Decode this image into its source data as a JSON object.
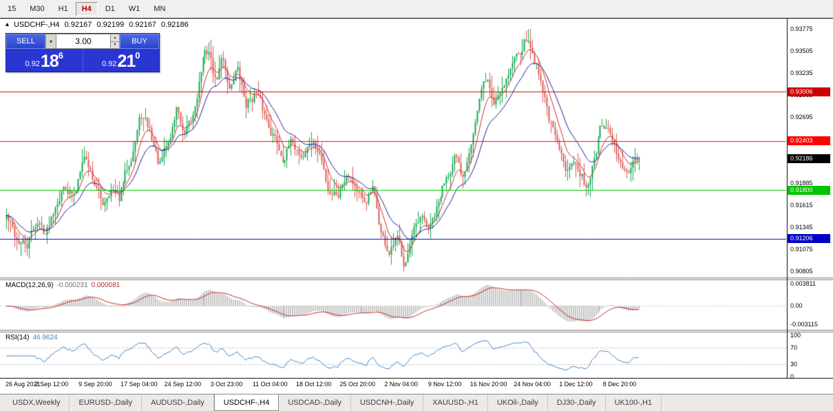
{
  "toolbar": {
    "timeframes": [
      "15",
      "M30",
      "H1",
      "H4",
      "D1",
      "W1",
      "MN"
    ],
    "active_timeframe": "H4"
  },
  "chart_header": {
    "collapse_icon": "▴",
    "symbol": "USDCHF-,H4",
    "open": "0.92167",
    "high": "0.92199",
    "low": "0.92167",
    "close": "0.92186"
  },
  "trade_panel": {
    "sell_label": "SELL",
    "buy_label": "BUY",
    "lot_size": "3.00",
    "sell_price": {
      "base": "0.92",
      "pips": "18",
      "pip_fraction": "6"
    },
    "buy_price": {
      "base": "0.92",
      "pips": "21",
      "pip_fraction": "0"
    }
  },
  "indicators": {
    "macd": {
      "name": "MACD(12,26,9)",
      "value_main": "-0.000231",
      "value_signal": "0.000081",
      "axis_labels": [
        {
          "text": "0.003811",
          "value": 0.003811
        },
        {
          "text": "0.00",
          "value": 0
        },
        {
          "text": "-0.003115",
          "value": -0.003115
        }
      ]
    },
    "rsi": {
      "name": "RSI(14)",
      "value": "46.9624",
      "axis_labels": [
        {
          "text": "100",
          "value": 100
        },
        {
          "text": "70",
          "value": 70
        },
        {
          "text": "30",
          "value": 30
        },
        {
          "text": "0",
          "value": 0
        }
      ]
    }
  },
  "time_axis": [
    "26 Aug 2021",
    "2 Sep 12:00",
    "9 Sep 20:00",
    "17 Sep 04:00",
    "24 Sep 12:00",
    "3 Oct 23:00",
    "11 Oct 04:00",
    "18 Oct 12:00",
    "25 Oct 20:00",
    "2 Nov 04:00",
    "9 Nov 12:00",
    "16 Nov 20:00",
    "24 Nov 04:00",
    "1 Dec 12:00",
    "8 Dec 20:00"
  ],
  "tabs": {
    "items": [
      "USDX,Weekly",
      "EURUSD-,Daily",
      "AUDUSD-,Daily",
      "USDCHF-,H4",
      "USDCAD-,Daily",
      "USDCNH-,Daily",
      "XAUUSD-,H1",
      "UKOil-,Daily",
      "DJ30-,Daily",
      "UK100-,H1"
    ],
    "active": "USDCHF-,H4"
  },
  "chart_data": {
    "type": "candlestick",
    "symbol": "USDCHF",
    "timeframe": "H4",
    "bars": 310,
    "seed": 42,
    "last_price": 0.92186,
    "price_top": 0.9387,
    "price_bottom": 0.9073,
    "price_axis_ticks": [
      "0.93775",
      "0.93505",
      "0.93235",
      "0.92965",
      "0.92695",
      "0.92425",
      "0.92155",
      "0.91885",
      "0.91615",
      "0.91345",
      "0.91075",
      "0.90805"
    ],
    "levels": [
      {
        "price": 0.93006,
        "label": "0.93006",
        "color": "#cc0000"
      },
      {
        "price": 0.92403,
        "label": "0.92403",
        "color": "#ff0000"
      },
      {
        "price": 0.918,
        "label": "0.91800",
        "color": "#00c400"
      },
      {
        "price": 0.91206,
        "label": "0.91206",
        "color": "#0000c8"
      }
    ],
    "current_price": {
      "price": 0.92186,
      "label": "0.92186",
      "color": "#000000"
    },
    "colors": {
      "up": "#0caa52",
      "down": "#db5a52",
      "ma_fast": "#d42a2a",
      "ma_slow": "#1a1a99",
      "macd_hist": "#c4c4c4",
      "macd_signal": "#cc2222",
      "rsi": "#3d85c8",
      "rsi_levels": "#b8b8b8"
    },
    "price_path": [
      [
        0.0,
        0.9148
      ],
      [
        0.015,
        0.912
      ],
      [
        0.032,
        0.911
      ],
      [
        0.047,
        0.9142
      ],
      [
        0.063,
        0.9128
      ],
      [
        0.08,
        0.9172
      ],
      [
        0.094,
        0.9188
      ],
      [
        0.108,
        0.917
      ],
      [
        0.121,
        0.923
      ],
      [
        0.135,
        0.92
      ],
      [
        0.151,
        0.9162
      ],
      [
        0.164,
        0.9185
      ],
      [
        0.177,
        0.9165
      ],
      [
        0.194,
        0.9215
      ],
      [
        0.213,
        0.9272
      ],
      [
        0.227,
        0.9252
      ],
      [
        0.242,
        0.9208
      ],
      [
        0.259,
        0.9245
      ],
      [
        0.27,
        0.9285
      ],
      [
        0.28,
        0.9242
      ],
      [
        0.293,
        0.9262
      ],
      [
        0.31,
        0.934
      ],
      [
        0.32,
        0.9352
      ],
      [
        0.331,
        0.931
      ],
      [
        0.342,
        0.9345
      ],
      [
        0.353,
        0.9305
      ],
      [
        0.364,
        0.9332
      ],
      [
        0.378,
        0.9285
      ],
      [
        0.393,
        0.93
      ],
      [
        0.407,
        0.9272
      ],
      [
        0.421,
        0.925
      ],
      [
        0.436,
        0.9222
      ],
      [
        0.453,
        0.9238
      ],
      [
        0.468,
        0.9222
      ],
      [
        0.482,
        0.924
      ],
      [
        0.496,
        0.9222
      ],
      [
        0.509,
        0.918
      ],
      [
        0.525,
        0.9178
      ],
      [
        0.539,
        0.9208
      ],
      [
        0.552,
        0.9185
      ],
      [
        0.565,
        0.916
      ],
      [
        0.579,
        0.918
      ],
      [
        0.593,
        0.9125
      ],
      [
        0.606,
        0.91
      ],
      [
        0.617,
        0.9118
      ],
      [
        0.628,
        0.9093
      ],
      [
        0.641,
        0.9122
      ],
      [
        0.655,
        0.914
      ],
      [
        0.669,
        0.9132
      ],
      [
        0.682,
        0.9158
      ],
      [
        0.695,
        0.9198
      ],
      [
        0.709,
        0.9222
      ],
      [
        0.721,
        0.9188
      ],
      [
        0.736,
        0.9252
      ],
      [
        0.749,
        0.9295
      ],
      [
        0.759,
        0.9318
      ],
      [
        0.77,
        0.9285
      ],
      [
        0.782,
        0.9308
      ],
      [
        0.795,
        0.933
      ],
      [
        0.809,
        0.9352
      ],
      [
        0.822,
        0.9368
      ],
      [
        0.833,
        0.9345
      ],
      [
        0.844,
        0.9322
      ],
      [
        0.857,
        0.9272
      ],
      [
        0.871,
        0.9232
      ],
      [
        0.883,
        0.9205
      ],
      [
        0.895,
        0.9228
      ],
      [
        0.906,
        0.9196
      ],
      [
        0.917,
        0.9185
      ],
      [
        0.928,
        0.9215
      ],
      [
        0.941,
        0.9258
      ],
      [
        0.951,
        0.9248
      ],
      [
        0.962,
        0.9228
      ],
      [
        0.975,
        0.9202
      ],
      [
        0.986,
        0.9198
      ],
      [
        1.0,
        0.92186
      ]
    ]
  }
}
